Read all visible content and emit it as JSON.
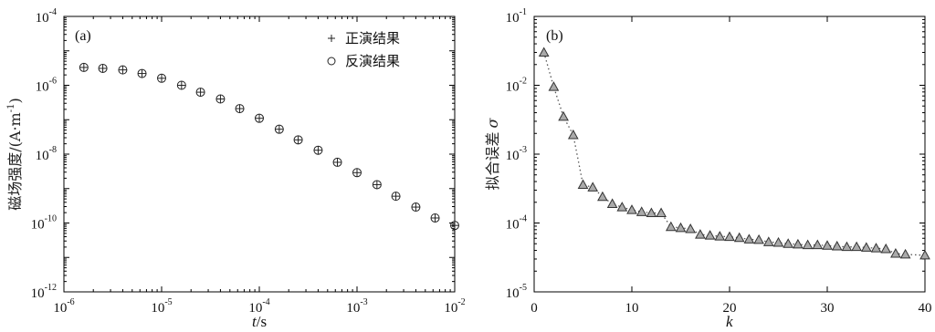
{
  "chart_data": [
    {
      "type": "scatter",
      "panel_label": "(a)",
      "xscale": "log",
      "yscale": "log",
      "xlim": [
        1e-06,
        0.01
      ],
      "ylim": [
        1e-12,
        0.0001
      ],
      "xlabel_var": "t",
      "xlabel_unit": "/s",
      "ylabel_main": "磁场强度/(A·m",
      "ylabel_exp": "-1",
      "ylabel_close": ")",
      "xticks": [
        {
          "base": "10",
          "exp": "-6",
          "value": 1e-06
        },
        {
          "base": "10",
          "exp": "-5",
          "value": 1e-05
        },
        {
          "base": "10",
          "exp": "-4",
          "value": 0.0001
        },
        {
          "base": "10",
          "exp": "-3",
          "value": 0.001
        },
        {
          "base": "10",
          "exp": "-2",
          "value": 0.01
        }
      ],
      "yticks": [
        {
          "base": "10",
          "exp": "-12",
          "value": 1e-12
        },
        {
          "base": "10",
          "exp": "-10",
          "value": 1e-10
        },
        {
          "base": "10",
          "exp": "-8",
          "value": 1e-08
        },
        {
          "base": "10",
          "exp": "-6",
          "value": 1e-06
        },
        {
          "base": "10",
          "exp": "-4",
          "value": 0.0001
        }
      ],
      "legend": {
        "position": "top-right",
        "entries": [
          {
            "marker": "+",
            "label": "正演结果"
          },
          {
            "marker": "○",
            "label": "反演结果"
          }
        ]
      },
      "series": [
        {
          "name": "正演结果",
          "marker": "plus",
          "x": [
            1.6e-06,
            2.5e-06,
            4e-06,
            6.3e-06,
            1e-05,
            1.6e-05,
            2.5e-05,
            4e-05,
            6.3e-05,
            0.0001,
            0.00016,
            0.00025,
            0.0004,
            0.00063,
            0.001,
            0.0016,
            0.0025,
            0.004,
            0.0063,
            0.01
          ],
          "y": [
            3.3e-06,
            3.1e-06,
            2.8e-06,
            2.2e-06,
            1.6e-06,
            1e-06,
            6.3e-07,
            4e-07,
            2.1e-07,
            1.1e-07,
            5.3e-08,
            2.6e-08,
            1.3e-08,
            5.8e-09,
            2.9e-09,
            1.3e-09,
            6e-10,
            2.9e-10,
            1.4e-10,
            8.5e-11
          ]
        },
        {
          "name": "反演结果",
          "marker": "circle",
          "x": [
            1.6e-06,
            2.5e-06,
            4e-06,
            6.3e-06,
            1e-05,
            1.6e-05,
            2.5e-05,
            4e-05,
            6.3e-05,
            0.0001,
            0.00016,
            0.00025,
            0.0004,
            0.00063,
            0.001,
            0.0016,
            0.0025,
            0.004,
            0.0063,
            0.01
          ],
          "y": [
            3.3e-06,
            3.1e-06,
            2.8e-06,
            2.2e-06,
            1.6e-06,
            1e-06,
            6.3e-07,
            4e-07,
            2.1e-07,
            1.1e-07,
            5.3e-08,
            2.6e-08,
            1.3e-08,
            5.8e-09,
            2.9e-09,
            1.3e-09,
            6e-10,
            2.9e-10,
            1.4e-10,
            8.5e-11
          ]
        }
      ],
      "grid": false
    },
    {
      "type": "line",
      "panel_label": "(b)",
      "xscale": "linear",
      "yscale": "log",
      "xlim": [
        0,
        40
      ],
      "ylim": [
        1e-05,
        0.1
      ],
      "xlabel_var": "k",
      "ylabel_main": "拟合误差",
      "ylabel_var": "σ",
      "xticks": [
        {
          "label": "0",
          "value": 0
        },
        {
          "label": "10",
          "value": 10
        },
        {
          "label": "20",
          "value": 20
        },
        {
          "label": "30",
          "value": 30
        },
        {
          "label": "40",
          "value": 40
        }
      ],
      "yticks": [
        {
          "base": "10",
          "exp": "-5",
          "value": 1e-05
        },
        {
          "base": "10",
          "exp": "-4",
          "value": 0.0001
        },
        {
          "base": "10",
          "exp": "-3",
          "value": 0.001
        },
        {
          "base": "10",
          "exp": "-2",
          "value": 0.01
        },
        {
          "base": "10",
          "exp": "-1",
          "value": 0.1
        }
      ],
      "series": [
        {
          "marker": "triangle",
          "line": "dotted",
          "x": [
            1,
            2,
            3,
            4,
            5,
            6,
            7,
            8,
            9,
            10,
            11,
            12,
            13,
            14,
            15,
            16,
            17,
            18,
            19,
            20,
            21,
            22,
            23,
            24,
            25,
            26,
            27,
            28,
            29,
            30,
            31,
            32,
            33,
            34,
            35,
            36,
            37,
            38,
            40
          ],
          "y": [
            0.03,
            0.0095,
            0.0035,
            0.0019,
            0.00036,
            0.00033,
            0.00024,
            0.00019,
            0.00017,
            0.000155,
            0.000145,
            0.00014,
            0.00014,
            8.8e-05,
            8.5e-05,
            8.2e-05,
            6.8e-05,
            6.6e-05,
            6.4e-05,
            6.3e-05,
            6.1e-05,
            5.8e-05,
            5.7e-05,
            5.3e-05,
            5.2e-05,
            5e-05,
            4.9e-05,
            4.8e-05,
            4.8e-05,
            4.7e-05,
            4.6e-05,
            4.5e-05,
            4.5e-05,
            4.4e-05,
            4.3e-05,
            4.2e-05,
            3.6e-05,
            3.5e-05,
            3.4e-05
          ]
        }
      ],
      "grid": false
    }
  ]
}
